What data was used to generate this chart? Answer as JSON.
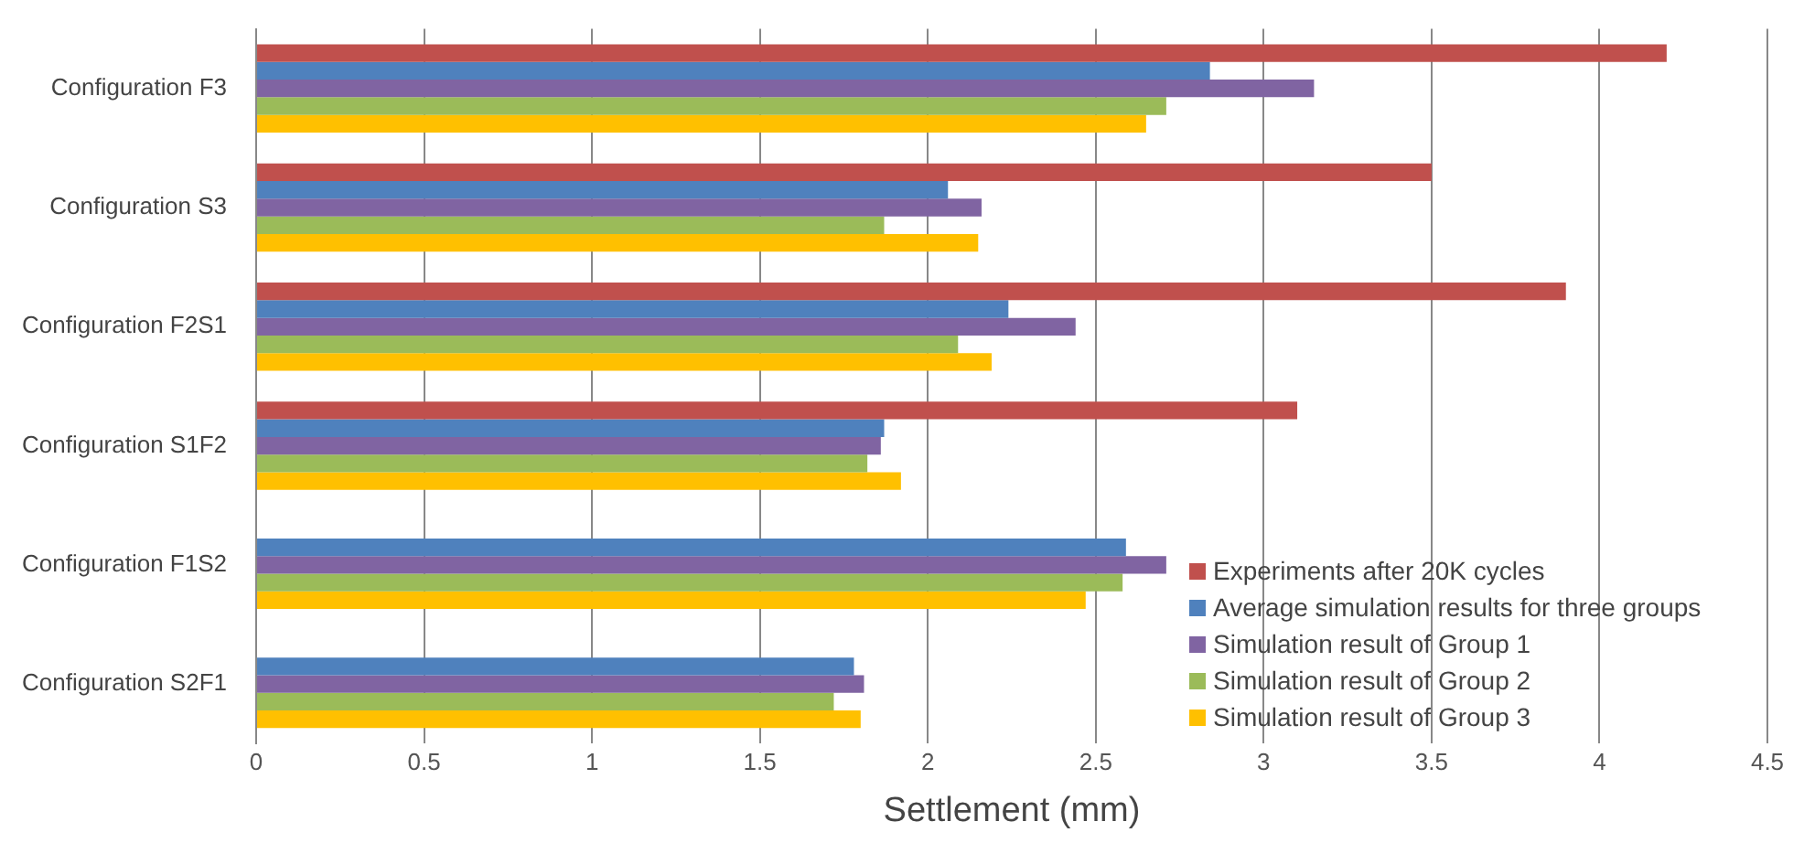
{
  "chart_data": {
    "type": "bar",
    "orientation": "horizontal",
    "xlabel": "Settlement (mm)",
    "categories": [
      "Configuration F3",
      "Configuration S3",
      "Configuration F2S1",
      "Configuration S1F2",
      "Configuration F1S2",
      "Configuration S2F1"
    ],
    "series": [
      {
        "name": "Experiments after 20K cycles",
        "color": "#c0504d",
        "values": [
          4.2,
          3.5,
          3.9,
          3.1,
          null,
          null
        ]
      },
      {
        "name": "Average simulation results for three groups",
        "color": "#4f81bd",
        "values": [
          2.84,
          2.06,
          2.24,
          1.87,
          2.59,
          1.78
        ]
      },
      {
        "name": "Simulation result of Group 1",
        "color": "#8064a2",
        "values": [
          3.15,
          2.16,
          2.44,
          1.86,
          2.71,
          1.81
        ]
      },
      {
        "name": "Simulation result of Group 2",
        "color": "#9bbb59",
        "values": [
          2.71,
          1.87,
          2.09,
          1.82,
          2.58,
          1.72
        ]
      },
      {
        "name": "Simulation result of Group 3",
        "color": "#ffc000",
        "values": [
          2.65,
          2.15,
          2.19,
          1.92,
          2.47,
          1.8
        ]
      }
    ],
    "xlim": [
      0,
      4.5
    ],
    "xticks": [
      0,
      0.5,
      1,
      1.5,
      2,
      2.5,
      3,
      3.5,
      4,
      4.5
    ],
    "grid": "x",
    "legend": "bottom right"
  }
}
